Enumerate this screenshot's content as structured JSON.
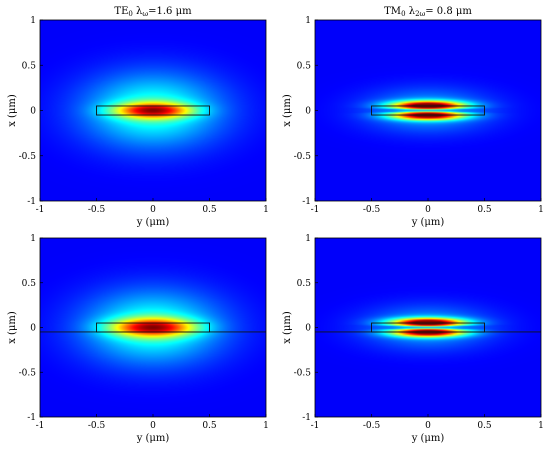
{
  "chart_data": [
    {
      "type": "heatmap",
      "mode": "TE0",
      "title_main": "TE",
      "title_sub": "0",
      "title_mid": " λ",
      "title_sub2": "ω",
      "title_end": "=1.6 μm",
      "xlabel": "y (μm)",
      "ylabel": "x (μm)",
      "xlim": [
        -1,
        1
      ],
      "ylim": [
        -1,
        1
      ],
      "xticks": [
        "-1",
        "-0.5",
        "0",
        "0.5",
        "1"
      ],
      "yticks": [
        "1",
        "0.5",
        "0",
        "-0.5",
        "-1"
      ],
      "waveguide": {
        "y_range": [
          -0.5,
          0.5
        ],
        "x_range": [
          -0.05,
          0.05
        ]
      },
      "substrate_line": false,
      "field": {
        "center_x": 0.0,
        "sigma_y": 0.22,
        "sigma_x": 0.06,
        "lobes": 1
      }
    },
    {
      "type": "heatmap",
      "mode": "TM0",
      "title_main": "TM",
      "title_sub": "0",
      "title_mid": " λ",
      "title_sub2": "2ω",
      "title_end": "= 0.8 μm",
      "xlabel": "y (μm)",
      "ylabel": "x (μm)",
      "xlim": [
        -1,
        1
      ],
      "ylim": [
        -1,
        1
      ],
      "xticks": [
        "-1",
        "-0.5",
        "0",
        "0.5",
        "1"
      ],
      "yticks": [
        "1",
        "0.5",
        "0",
        "-0.5",
        "-1"
      ],
      "waveguide": {
        "y_range": [
          -0.5,
          0.5
        ],
        "x_range": [
          -0.05,
          0.05
        ]
      },
      "substrate_line": false,
      "field": {
        "center_x": 0.0,
        "sigma_y": 0.22,
        "sigma_x": 0.035,
        "lobes": 2
      }
    },
    {
      "type": "heatmap",
      "mode": "TE0",
      "title_main": "",
      "title_sub": "",
      "title_mid": "",
      "title_sub2": "",
      "title_end": "",
      "xlabel": "y (μm)",
      "ylabel": "x (μm)",
      "xlim": [
        -1,
        1
      ],
      "ylim": [
        -1,
        1
      ],
      "xticks": [
        "-1",
        "-0.5",
        "0",
        "0.5",
        "1"
      ],
      "yticks": [
        "1",
        "0.5",
        "0",
        "-0.5",
        "-1"
      ],
      "waveguide": {
        "y_range": [
          -0.5,
          0.5
        ],
        "x_range": [
          -0.05,
          0.05
        ]
      },
      "substrate_line": true,
      "field": {
        "center_x": 0.0,
        "sigma_y": 0.24,
        "sigma_x": 0.07,
        "lobes": 1
      }
    },
    {
      "type": "heatmap",
      "mode": "TM0",
      "title_main": "",
      "title_sub": "",
      "title_mid": "",
      "title_sub2": "",
      "title_end": "",
      "xlabel": "y (μm)",
      "ylabel": "x (μm)",
      "xlim": [
        -1,
        1
      ],
      "ylim": [
        -1,
        1
      ],
      "xticks": [
        "-1",
        "-0.5",
        "0",
        "0.5",
        "1"
      ],
      "yticks": [
        "1",
        "0.5",
        "0",
        "-0.5",
        "-1"
      ],
      "waveguide": {
        "y_range": [
          -0.5,
          0.5
        ],
        "x_range": [
          -0.05,
          0.05
        ]
      },
      "substrate_line": true,
      "field": {
        "center_x": 0.0,
        "sigma_y": 0.22,
        "sigma_x": 0.035,
        "lobes": 2
      }
    }
  ]
}
